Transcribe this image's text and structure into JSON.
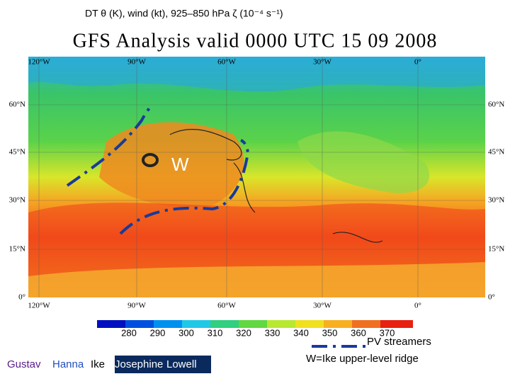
{
  "header": {
    "title": "DT θ (K), wind (kt), 925–850 hPa ζ (10⁻⁴ s⁻¹)"
  },
  "map": {
    "title": "GFS Analysis valid 0000 UTC 15 09 2008",
    "lon_labels": [
      "120°W",
      "90°W",
      "60°W",
      "30°W",
      "0°"
    ],
    "lat_labels": [
      "60°N",
      "45°N",
      "30°N",
      "15°N",
      "0°"
    ],
    "marker": "W"
  },
  "colorbar": {
    "labels": [
      280,
      290,
      300,
      310,
      320,
      330,
      340,
      350,
      360,
      370
    ]
  },
  "storms": [
    "Gustav",
    "Hanna",
    "Ike",
    "Josephine",
    "Lowell"
  ],
  "legend": {
    "streamers": "PV streamers",
    "ridge": "W=Ike upper-level ridge"
  }
}
